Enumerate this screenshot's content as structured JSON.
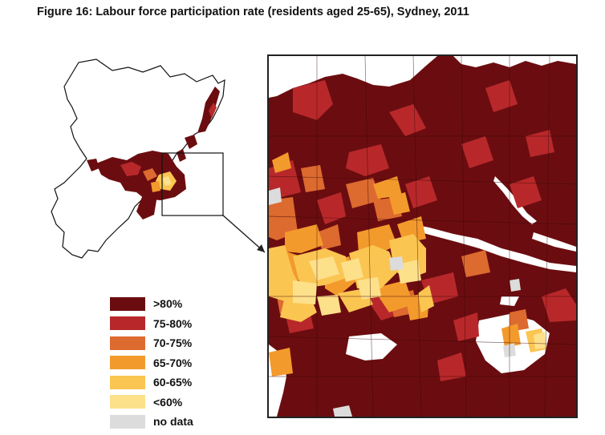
{
  "figure": {
    "title": "Figure 16: Labour force participation rate (residents aged 25-65), Sydney, 2011"
  },
  "map": {
    "legend": [
      {
        "label": ">80%",
        "color": "#6b0d10"
      },
      {
        "label": "75-80%",
        "color": "#b8282a"
      },
      {
        "label": "70-75%",
        "color": "#dd6a2f"
      },
      {
        "label": "65-70%",
        "color": "#f39a2c"
      },
      {
        "label": "60-65%",
        "color": "#fbc552"
      },
      {
        "label": "<60%",
        "color": "#fde08a"
      },
      {
        "label": "no data",
        "color": "#dcdcdc"
      }
    ]
  }
}
